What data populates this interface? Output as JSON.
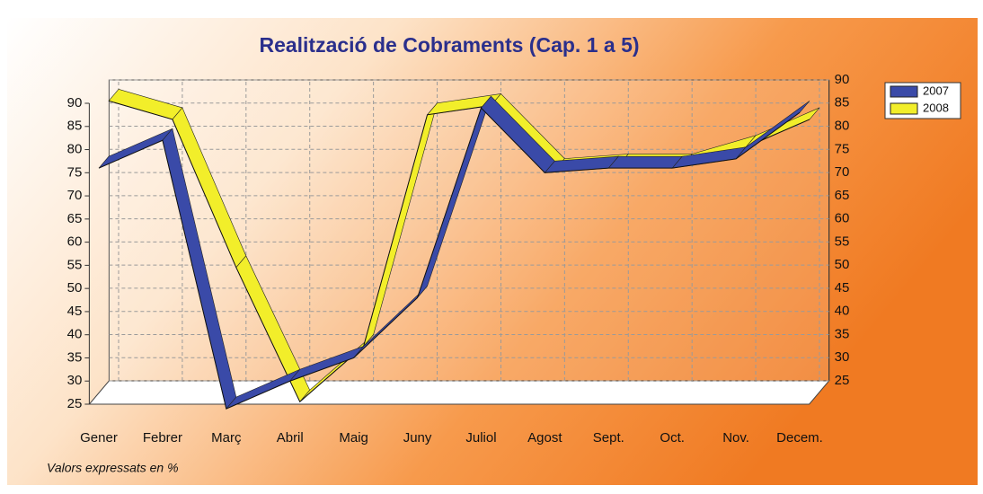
{
  "chart_data": {
    "type": "line3d",
    "title": "Realització de Cobraments (Cap. 1 a 5)",
    "footnote": "Valors expressats en %",
    "categories": [
      "Gener",
      "Febrer",
      "Març",
      "Abril",
      "Maig",
      "Juny",
      "Juliol",
      "Agost",
      "Sept.",
      "Oct.",
      "Nov.",
      "Decem."
    ],
    "series": [
      {
        "name": "2007",
        "color": "#3a4aa8",
        "values": [
          76,
          82,
          24,
          30,
          35,
          48,
          89,
          75,
          76,
          76,
          78,
          88
        ]
      },
      {
        "name": "2008",
        "color": "#f2ee2a",
        "values": [
          88,
          84,
          52,
          23,
          35,
          85,
          87,
          73,
          74,
          74,
          78,
          84
        ]
      }
    ],
    "ylim": [
      25,
      90
    ],
    "yticks": [
      25,
      30,
      35,
      40,
      45,
      50,
      55,
      60,
      65,
      70,
      75,
      80,
      85,
      90
    ],
    "grid": true,
    "legend": "top-right"
  }
}
